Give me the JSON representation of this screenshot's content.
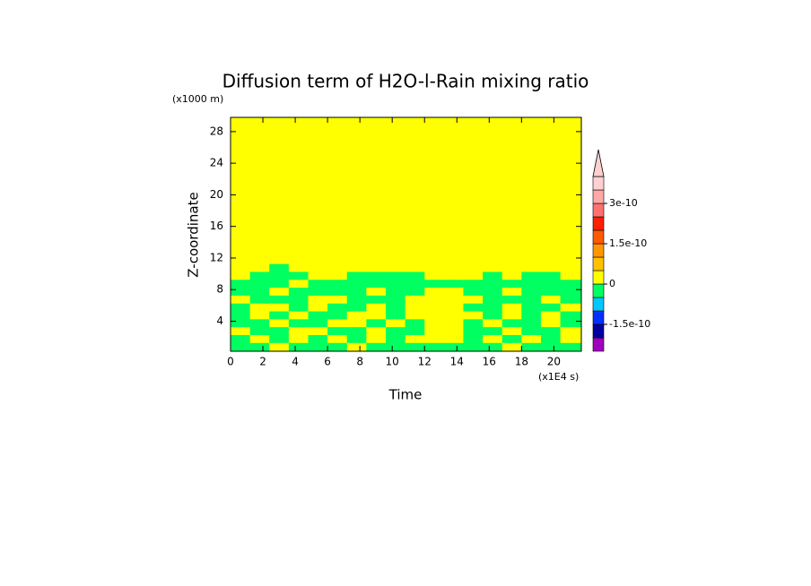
{
  "chart_data": {
    "type": "contour",
    "title": "Diffusion term of H2O-l-Rain mixing ratio",
    "xlabel": "Time",
    "ylabel": "Z-coordinate",
    "xunit": "(x1E4 s)",
    "yunit": "(x1000 m)",
    "xlim": [
      0,
      21.7
    ],
    "ylim": [
      0.2,
      29.8
    ],
    "xticks": [
      0,
      2,
      4,
      6,
      8,
      10,
      12,
      14,
      16,
      18,
      20
    ],
    "yticks": [
      4,
      8,
      12,
      16,
      20,
      24,
      28
    ],
    "x": [
      0.6,
      1.8,
      3.0,
      4.2,
      5.4,
      6.6,
      7.8,
      9.0,
      10.2,
      11.4,
      12.6,
      13.8,
      15.0,
      16.2,
      17.4,
      18.6,
      19.8,
      21.0
    ],
    "y": [
      0.8,
      1.8,
      2.8,
      3.8,
      4.8,
      5.8,
      6.8,
      7.8,
      8.8,
      9.8,
      10.8,
      11.8,
      15,
      20,
      25,
      29
    ],
    "z": [
      [
        -2e-11,
        -2e-11,
        2e-11,
        -2e-11,
        -2e-11,
        -2e-11,
        2e-11,
        -2e-11,
        -2e-11,
        -2e-11,
        -2e-11,
        -2e-11,
        -2e-11,
        -2e-11,
        2e-11,
        -2e-11,
        -2e-11,
        -2e-11
      ],
      [
        -2e-11,
        2e-11,
        -2e-11,
        2e-11,
        -2e-11,
        2e-11,
        -2e-11,
        2e-11,
        -2e-11,
        2e-11,
        2e-11,
        2e-11,
        -2e-11,
        2e-11,
        -2e-11,
        2e-11,
        -2e-11,
        2e-11
      ],
      [
        2e-11,
        -2e-11,
        -2e-11,
        2e-11,
        2e-11,
        -2e-11,
        -2e-11,
        2e-11,
        -2e-11,
        -2e-11,
        2e-11,
        2e-11,
        -2e-11,
        -2e-11,
        2e-11,
        -2e-11,
        -2e-11,
        2e-11
      ],
      [
        -2e-11,
        -2e-11,
        2e-11,
        -2e-11,
        -2e-11,
        2e-11,
        2e-11,
        -2e-11,
        2e-11,
        -2e-11,
        2e-11,
        2e-11,
        -2e-11,
        2e-11,
        -2e-11,
        -2e-11,
        2e-11,
        -2e-11
      ],
      [
        -2e-11,
        2e-11,
        -2e-11,
        2e-11,
        -2e-11,
        -2e-11,
        2e-11,
        2e-11,
        -2e-11,
        2e-11,
        2e-11,
        2e-11,
        2e-11,
        -2e-11,
        2e-11,
        -2e-11,
        2e-11,
        -2e-11
      ],
      [
        -2e-11,
        2e-11,
        2e-11,
        -2e-11,
        2e-11,
        -2e-11,
        -2e-11,
        2e-11,
        -2e-11,
        2e-11,
        2e-11,
        2e-11,
        -2e-11,
        -2e-11,
        2e-11,
        -2e-11,
        -2e-11,
        2e-11
      ],
      [
        2e-11,
        -2e-11,
        -2e-11,
        -2e-11,
        2e-11,
        2e-11,
        -2e-11,
        -2e-11,
        -2e-11,
        2e-11,
        2e-11,
        2e-11,
        2e-11,
        -2e-11,
        -2e-11,
        -2e-11,
        2e-11,
        -2e-11
      ],
      [
        -2e-11,
        -2e-11,
        2e-11,
        -2e-11,
        -2e-11,
        -2e-11,
        -2e-11,
        2e-11,
        -2e-11,
        -2e-11,
        2e-11,
        2e-11,
        -2e-11,
        -2e-11,
        2e-11,
        -2e-11,
        -2e-11,
        -2e-11
      ],
      [
        -2e-11,
        -2e-11,
        -2e-11,
        2e-11,
        -2e-11,
        -2e-11,
        -2e-11,
        -2e-11,
        -2e-11,
        -2e-11,
        -2e-11,
        -2e-11,
        -2e-11,
        -2e-11,
        -2e-11,
        -2e-11,
        -2e-11,
        -2e-11
      ],
      [
        2e-11,
        -2e-11,
        -2e-11,
        -2e-11,
        2e-11,
        2e-11,
        -2e-11,
        -2e-11,
        -2e-11,
        -2e-11,
        2e-11,
        2e-11,
        2e-11,
        -2e-11,
        2e-11,
        -2e-11,
        -2e-11,
        2e-11
      ],
      [
        2e-11,
        2e-11,
        -2e-11,
        2e-11,
        2e-11,
        2e-11,
        2e-11,
        2e-11,
        2e-11,
        2e-11,
        2e-11,
        2e-11,
        2e-11,
        2e-11,
        2e-11,
        2e-11,
        2e-11,
        2e-11
      ],
      [
        2e-11,
        2e-11,
        2e-11,
        2e-11,
        2e-11,
        2e-11,
        2e-11,
        2e-11,
        2e-11,
        2e-11,
        2e-11,
        2e-11,
        2e-11,
        2e-11,
        2e-11,
        2e-11,
        2e-11,
        2e-11
      ],
      [
        2e-11,
        2e-11,
        2e-11,
        2e-11,
        2e-11,
        2e-11,
        2e-11,
        2e-11,
        2e-11,
        2e-11,
        2e-11,
        2e-11,
        2e-11,
        2e-11,
        2e-11,
        2e-11,
        2e-11,
        2e-11
      ],
      [
        2e-11,
        2e-11,
        2e-11,
        2e-11,
        2e-11,
        2e-11,
        2e-11,
        2e-11,
        2e-11,
        2e-11,
        2e-11,
        2e-11,
        2e-11,
        2e-11,
        2e-11,
        2e-11,
        2e-11,
        2e-11
      ],
      [
        2e-11,
        2e-11,
        2e-11,
        2e-11,
        2e-11,
        2e-11,
        2e-11,
        2e-11,
        2e-11,
        2e-11,
        2e-11,
        2e-11,
        2e-11,
        2e-11,
        2e-11,
        2e-11,
        2e-11,
        2e-11
      ],
      [
        2e-11,
        2e-11,
        2e-11,
        2e-11,
        2e-11,
        2e-11,
        2e-11,
        2e-11,
        2e-11,
        2e-11,
        2e-11,
        2e-11,
        2e-11,
        2e-11,
        2e-11,
        2e-11,
        2e-11,
        2e-11
      ]
    ],
    "levels": [
      -2.5e-10,
      -2e-10,
      -1.5e-10,
      -1e-10,
      -5e-11,
      0,
      5e-11,
      1e-10,
      1.5e-10,
      2e-10,
      2.5e-10,
      3e-10,
      3.5e-10,
      4e-10
    ],
    "colors": [
      "#a000c0",
      "#0000a0",
      "#0030ff",
      "#00c8ff",
      "#00ff60",
      "#ffff00",
      "#ffc000",
      "#ff9600",
      "#ff5a00",
      "#ff1e00",
      "#ff7070",
      "#ffa8a8",
      "#ffd0d0"
    ],
    "over_color": "#ffd0d0",
    "colorbar_ticks": [
      {
        "value": 3e-10,
        "label": "3e-10"
      },
      {
        "value": 1.5e-10,
        "label": "1.5e-10"
      },
      0,
      {
        "value": -1.5e-10,
        "label": "-1.5e-10"
      }
    ]
  }
}
